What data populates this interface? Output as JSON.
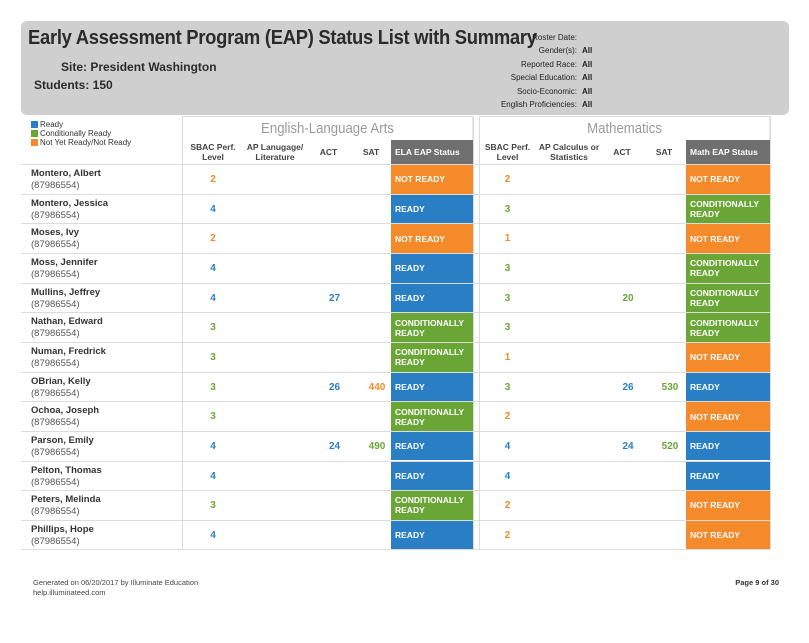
{
  "report": {
    "title": "Early Assessment Program (EAP) Status List with Summary",
    "site": "Site: President Washington",
    "students": "Students: 150"
  },
  "filters": [
    {
      "label": "Roster Date:",
      "value": ""
    },
    {
      "label": "Gender(s):",
      "value": "All"
    },
    {
      "label": "Reported Race:",
      "value": "All"
    },
    {
      "label": "Special Education:",
      "value": "All"
    },
    {
      "label": "Socio-Economic:",
      "value": "All"
    },
    {
      "label": "English Proficiencies:",
      "value": "All"
    }
  ],
  "legend": [
    {
      "label": "Ready",
      "color": "#2a7ec3"
    },
    {
      "label": "Conditionally Ready",
      "color": "#6aa636"
    },
    {
      "label": "Not Yet Ready/Not Ready",
      "color": "#f48a2a"
    }
  ],
  "sections": {
    "ela": "English-Language Arts",
    "math": "Mathematics"
  },
  "columns": {
    "ela": [
      "SBAC Perf. Level",
      "AP Lanugage/ Literature",
      "ACT",
      "SAT",
      "ELA EAP Status"
    ],
    "math": [
      "SBAC Perf. Level",
      "AP Calculus or Statistics",
      "ACT",
      "SAT",
      "Math EAP Status"
    ]
  },
  "colors": {
    "ready": "#2a7ec3",
    "conditional": "#6aa636",
    "notready": "#f48a2a",
    "level1": "#f48a2a",
    "level2": "#f48a2a",
    "level3": "#6aa636",
    "level4": "#2a7ec3"
  },
  "status_labels": {
    "ready": "READY",
    "conditional": "CONDITIONALLY READY",
    "notready": "NOT READY"
  },
  "students": [
    {
      "name": "Montero, Albert",
      "id": "(87986554)",
      "ela": {
        "sbac": "2",
        "ap": "",
        "act": "",
        "sat": "",
        "status": "notready"
      },
      "math": {
        "sbac": "2",
        "ap": "",
        "act": "",
        "sat": "",
        "status": "notready"
      }
    },
    {
      "name": "Montero, Jessica",
      "id": "(87986554)",
      "ela": {
        "sbac": "4",
        "ap": "",
        "act": "",
        "sat": "",
        "status": "ready"
      },
      "math": {
        "sbac": "3",
        "ap": "",
        "act": "",
        "sat": "",
        "status": "conditional"
      }
    },
    {
      "name": "Moses, Ivy",
      "id": "(87986554)",
      "ela": {
        "sbac": "2",
        "ap": "",
        "act": "",
        "sat": "",
        "status": "notready"
      },
      "math": {
        "sbac": "1",
        "ap": "",
        "act": "",
        "sat": "",
        "status": "notready"
      }
    },
    {
      "name": "Moss, Jennifer",
      "id": "(87986554)",
      "ela": {
        "sbac": "4",
        "ap": "",
        "act": "",
        "sat": "",
        "status": "ready"
      },
      "math": {
        "sbac": "3",
        "ap": "",
        "act": "",
        "sat": "",
        "status": "conditional"
      }
    },
    {
      "name": "Mullins, Jeffrey",
      "id": "(87986554)",
      "ela": {
        "sbac": "4",
        "ap": "",
        "act": "27",
        "sat": "",
        "status": "ready"
      },
      "math": {
        "sbac": "3",
        "ap": "",
        "act": "20",
        "sat": "",
        "status": "conditional"
      }
    },
    {
      "name": "Nathan, Edward",
      "id": "(87986554)",
      "ela": {
        "sbac": "3",
        "ap": "",
        "act": "",
        "sat": "",
        "status": "conditional"
      },
      "math": {
        "sbac": "3",
        "ap": "",
        "act": "",
        "sat": "",
        "status": "conditional"
      }
    },
    {
      "name": "Numan, Fredrick",
      "id": "(87986554)",
      "ela": {
        "sbac": "3",
        "ap": "",
        "act": "",
        "sat": "",
        "status": "conditional"
      },
      "math": {
        "sbac": "1",
        "ap": "",
        "act": "",
        "sat": "",
        "status": "notready"
      }
    },
    {
      "name": "OBrian, Kelly",
      "id": "(87986554)",
      "ela": {
        "sbac": "3",
        "ap": "",
        "act": "26",
        "sat": "440",
        "status": "ready"
      },
      "math": {
        "sbac": "3",
        "ap": "",
        "act": "26",
        "sat": "530",
        "status": "ready"
      }
    },
    {
      "name": "Ochoa, Joseph",
      "id": "(87986554)",
      "ela": {
        "sbac": "3",
        "ap": "",
        "act": "",
        "sat": "",
        "status": "conditional"
      },
      "math": {
        "sbac": "2",
        "ap": "",
        "act": "",
        "sat": "",
        "status": "notready"
      }
    },
    {
      "name": "Parson, Emily",
      "id": "(87986554)",
      "ela": {
        "sbac": "4",
        "ap": "",
        "act": "24",
        "sat": "490",
        "status": "ready"
      },
      "math": {
        "sbac": "4",
        "ap": "",
        "act": "24",
        "sat": "520",
        "status": "ready"
      }
    },
    {
      "name": "Pelton, Thomas",
      "id": "(87986554)",
      "ela": {
        "sbac": "4",
        "ap": "",
        "act": "",
        "sat": "",
        "status": "ready"
      },
      "math": {
        "sbac": "4",
        "ap": "",
        "act": "",
        "sat": "",
        "status": "ready"
      }
    },
    {
      "name": "Peters, Melinda",
      "id": "(87986554)",
      "ela": {
        "sbac": "3",
        "ap": "",
        "act": "",
        "sat": "",
        "status": "conditional"
      },
      "math": {
        "sbac": "2",
        "ap": "",
        "act": "",
        "sat": "",
        "status": "notready"
      }
    },
    {
      "name": "Phillips, Hope",
      "id": "(87986554)",
      "ela": {
        "sbac": "4",
        "ap": "",
        "act": "",
        "sat": "",
        "status": "ready"
      },
      "math": {
        "sbac": "2",
        "ap": "",
        "act": "",
        "sat": "",
        "status": "notready"
      }
    }
  ],
  "score_colors": {
    "act_sat_ela": {
      "27": "#2a7ec3",
      "26": "#2a7ec3",
      "24": "#2a7ec3",
      "440": "#f48a2a",
      "490": "#6aa636"
    },
    "act_sat_math": {
      "20": "#6aa636",
      "26": "#2a7ec3",
      "530": "#6aa636",
      "24": "#2a7ec3",
      "520": "#6aa636"
    }
  },
  "footer": {
    "generated": "Generated on 06/20/2017 by Illuminate Education",
    "site": "help.illuminateed.com",
    "page": "Page 9 of 30"
  }
}
